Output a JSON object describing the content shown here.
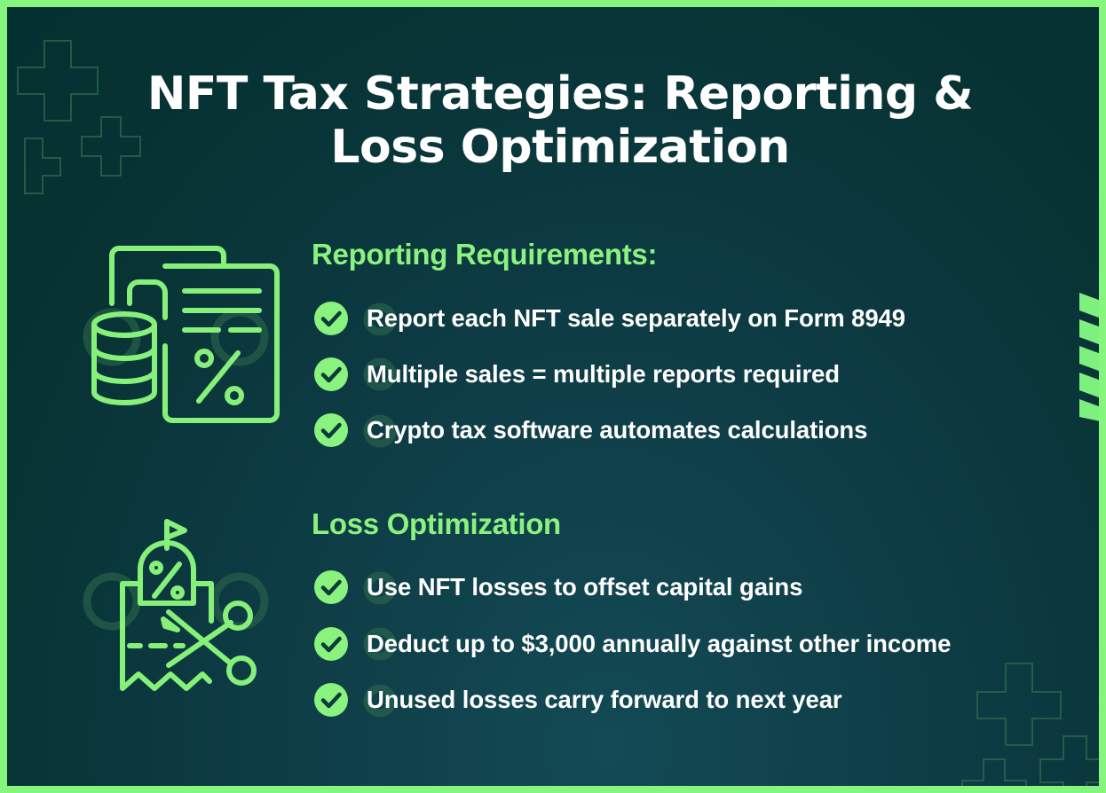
{
  "title": {
    "line1": "NFT Tax Strategies: Reporting &",
    "line2": "Loss Optimization"
  },
  "colors": {
    "accent": "#8af27e",
    "background": "#0b3a3c",
    "text": "#ffffff"
  },
  "sections": [
    {
      "heading": "Reporting Requirements:",
      "icon": "document-percent-coins-icon",
      "items": [
        "Report each NFT sale separately on Form 8949",
        "Multiple sales = multiple reports required",
        "Crypto tax software automates calculations"
      ]
    },
    {
      "heading": "Loss Optimization",
      "icon": "receipt-scissors-discount-icon",
      "items": [
        "Use NFT losses to offset capital gains",
        "Deduct up to $3,000 annually against other income",
        "Unused losses carry forward to next year"
      ]
    }
  ]
}
